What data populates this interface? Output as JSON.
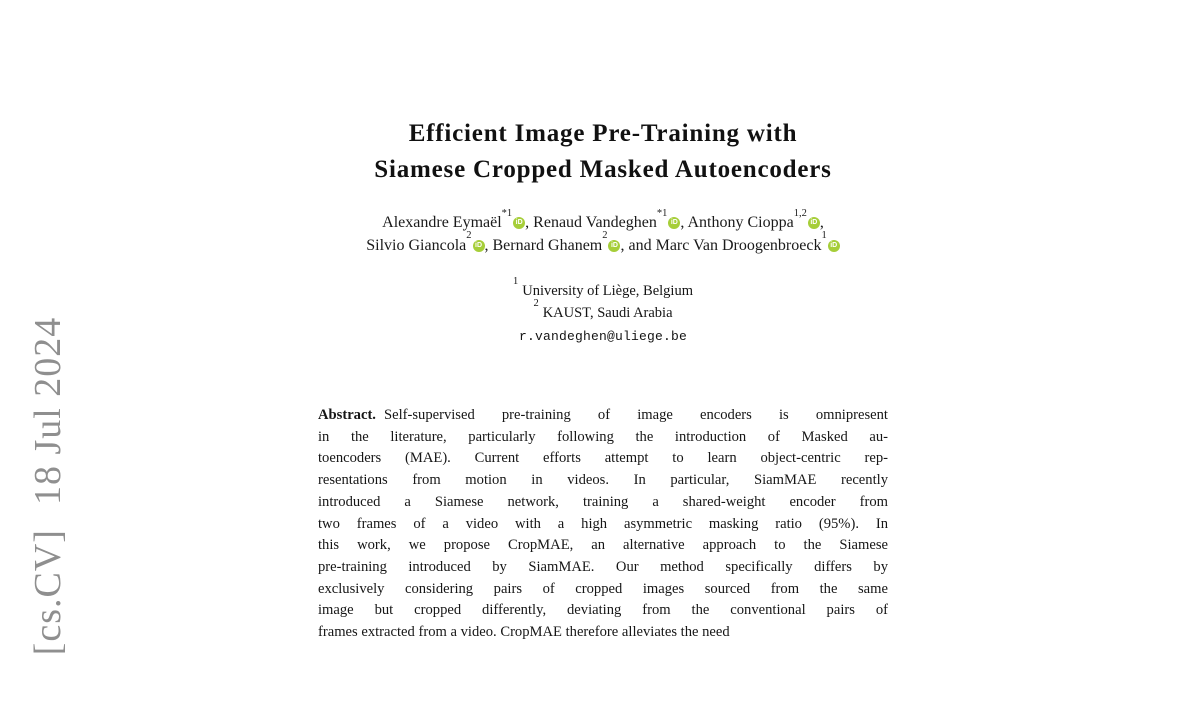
{
  "watermark": {
    "category": "[cs.CV]",
    "date": "18 Jul 2024"
  },
  "paper": {
    "title_line1": "Efficient Image Pre-Training with",
    "title_line2": "Siamese Cropped Masked Autoencoders",
    "authors": [
      {
        "name": "Alexandre Eymaël",
        "sup": "*1",
        "sep": ", "
      },
      {
        "name": "Renaud Vandeghen",
        "sup": "*1",
        "sep": ", "
      },
      {
        "name": "Anthony Cioppa",
        "sup": "1,2",
        "sep": ","
      },
      {
        "name": "Silvio Giancola",
        "sup": "2",
        "sep": ", "
      },
      {
        "name": "Bernard Ghanem",
        "sup": "2",
        "sep": ", and "
      },
      {
        "name": "Marc Van Droogenbroeck",
        "sup": "1",
        "sep": ""
      }
    ],
    "affiliations": [
      {
        "sup": "1",
        "text": "University of Liège, Belgium"
      },
      {
        "sup": "2",
        "text": "KAUST, Saudi Arabia"
      }
    ],
    "email": "r.vandeghen@uliege.be",
    "abstract_label": "Abstract.",
    "abstract_lines": [
      "Self-supervised pre-training of image encoders is omnipresent",
      "in the literature, particularly following the introduction of Masked au-",
      "toencoders (MAE). Current efforts attempt to learn object-centric rep-",
      "resentations from motion in videos. In particular, SiamMAE recently",
      "introduced a Siamese network, training a shared-weight encoder from",
      "two frames of a video with a high asymmetric masking ratio (95%). In",
      "this work, we propose CropMAE, an alternative approach to the Siamese",
      "pre-training introduced by SiamMAE. Our method specifically differs by",
      "exclusively considering pairs of cropped images sourced from the same",
      "image but cropped differently, deviating from the conventional pairs of",
      "frames extracted from a video. CropMAE therefore alleviates the need"
    ]
  },
  "orcid": {
    "label": "iD",
    "green": "#a6ce39"
  },
  "colors": {
    "watermark_gray": "#8f8f8f"
  }
}
